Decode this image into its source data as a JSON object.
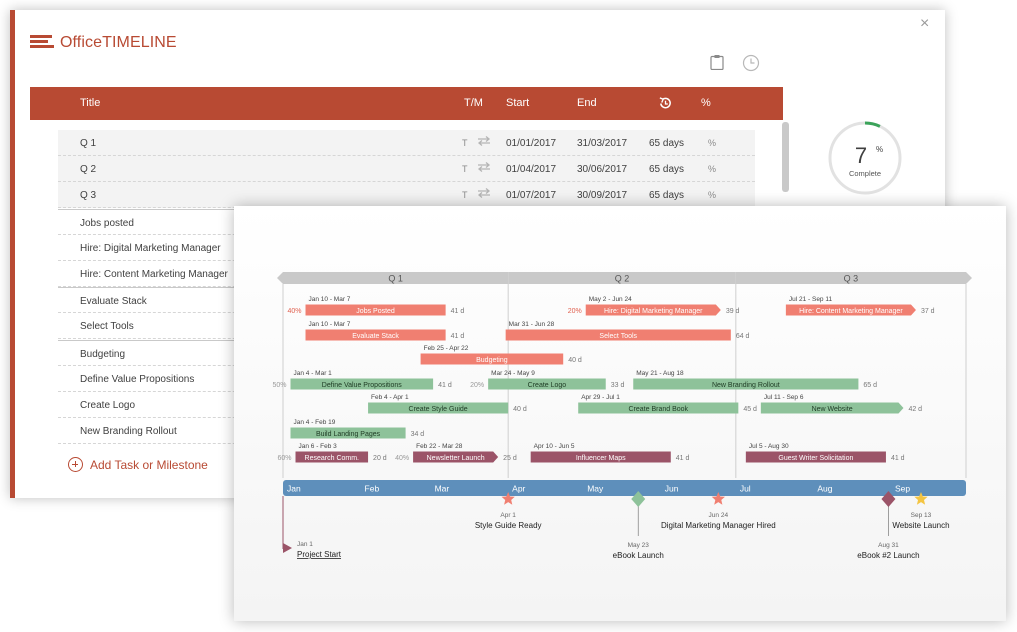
{
  "app": {
    "logo_office": "Office",
    "logo_timeline": "TIMELINE",
    "close": "×"
  },
  "editor": {
    "columns": {
      "title": "Title",
      "tm": "T/M",
      "start": "Start",
      "end": "End",
      "pct": "%"
    },
    "rows": [
      {
        "title": "Q 1",
        "tm": "T",
        "start": "01/01/2017",
        "end": "31/03/2017",
        "duration": "65 days",
        "pct": "%"
      },
      {
        "title": "Q 2",
        "tm": "T",
        "start": "01/04/2017",
        "end": "30/06/2017",
        "duration": "65 days",
        "pct": "%"
      },
      {
        "title": "Q 3",
        "tm": "T",
        "start": "01/07/2017",
        "end": "30/09/2017",
        "duration": "65 days",
        "pct": "%"
      },
      {
        "title": "Jobs posted"
      },
      {
        "title": "Hire: Digital Marketing Manager"
      },
      {
        "title": "Hire: Content Marketing Manager"
      },
      {
        "title": "Evaluate Stack"
      },
      {
        "title": "Select Tools"
      },
      {
        "title": "Budgeting"
      },
      {
        "title": "Define Value Propositions"
      },
      {
        "title": "Create Logo"
      },
      {
        "title": "New Branding Rollout"
      }
    ],
    "add_task_label": "Add Task or Milestone",
    "progress": {
      "value": "7",
      "unit": "%",
      "label": "Complete",
      "fraction": 0.07
    }
  },
  "timeline": {
    "colors": {
      "red": "#f07f71",
      "green": "#8ec29a",
      "purple": "#9b5468",
      "scale": "#5e8fbb",
      "quarter": "#c9c9c9"
    },
    "quarters": [
      {
        "label": "Q 1",
        "start_day": 0,
        "end_day": 90
      },
      {
        "label": "Q 2",
        "start_day": 90,
        "end_day": 181
      },
      {
        "label": "Q 3",
        "start_day": 181,
        "end_day": 273
      }
    ],
    "months": [
      {
        "label": "Jan",
        "day": 0
      },
      {
        "label": "Feb",
        "day": 31
      },
      {
        "label": "Mar",
        "day": 59
      },
      {
        "label": "Apr",
        "day": 90
      },
      {
        "label": "May",
        "day": 120
      },
      {
        "label": "Jun",
        "day": 151
      },
      {
        "label": "Jul",
        "day": 181
      },
      {
        "label": "Aug",
        "day": 212
      },
      {
        "label": "Sep",
        "day": 243
      }
    ],
    "tasks": [
      {
        "name": "Jobs Posted",
        "dates": "Jan 10 - Mar 7",
        "duration": "41 d",
        "pct": "40%",
        "color": "red",
        "lane": 0,
        "start": 9,
        "end": 65
      },
      {
        "name": "Hire: Digital Marketing Manager",
        "dates": "May 2 - Jun 24",
        "duration": "39 d",
        "pct": "20%",
        "color": "red",
        "lane": 0,
        "start": 121,
        "end": 175,
        "arrow": true
      },
      {
        "name": "Hire: Content Marketing Manager",
        "dates": "Jul 21 - Sep 11",
        "duration": "37 d",
        "color": "red",
        "lane": 0,
        "start": 201,
        "end": 253,
        "arrow": true
      },
      {
        "name": "Evaluate Stack",
        "dates": "Jan 10 - Mar 7",
        "duration": "41 d",
        "color": "red",
        "lane": 1,
        "start": 9,
        "end": 65
      },
      {
        "name": "Select Tools",
        "dates": "Mar 31 - Jun 28",
        "duration": "64 d",
        "color": "red",
        "lane": 1,
        "start": 89,
        "end": 179
      },
      {
        "name": "Budgeting",
        "dates": "Feb 25 - Apr 22",
        "duration": "40 d",
        "color": "red",
        "lane": 2,
        "start": 55,
        "end": 112
      },
      {
        "name": "Define Value Propositions",
        "dates": "Jan 4 - Mar 1",
        "duration": "41 d",
        "pct": "50%",
        "color": "green",
        "lane": 3,
        "start": 3,
        "end": 60
      },
      {
        "name": "Create Logo",
        "dates": "Mar 24 - May 9",
        "duration": "33 d",
        "pct": "20%",
        "color": "green",
        "lane": 3,
        "start": 82,
        "end": 129
      },
      {
        "name": "New Branding Rollout",
        "dates": "May 21 - Aug 18",
        "duration": "65 d",
        "color": "green",
        "lane": 3,
        "start": 140,
        "end": 230
      },
      {
        "name": "Create Style Guide",
        "dates": "Feb 4 - Apr 1",
        "duration": "40 d",
        "color": "green",
        "lane": 4,
        "start": 34,
        "end": 90
      },
      {
        "name": "Create Brand Book",
        "dates": "Apr 29 - Jul 1",
        "duration": "45 d",
        "color": "green",
        "lane": 4,
        "start": 118,
        "end": 182
      },
      {
        "name": "New Website",
        "dates": "Jul 11 - Sep 6",
        "duration": "42 d",
        "color": "green",
        "lane": 4,
        "start": 191,
        "end": 248,
        "arrow": true
      },
      {
        "name": "Build Landing Pages",
        "dates": "Jan 4 - Feb 19",
        "duration": "34 d",
        "color": "green",
        "lane": 5,
        "start": 3,
        "end": 49
      },
      {
        "name": "Research Comm.",
        "dates": "Jan 6 - Feb 3",
        "duration": "20 d",
        "pct": "60%",
        "color": "purple",
        "lane": 6,
        "start": 5,
        "end": 34
      },
      {
        "name": "Newsletter Launch",
        "dates": "Feb 22 - Mar 28",
        "duration": "25 d",
        "pct": "40%",
        "color": "purple",
        "lane": 6,
        "start": 52,
        "end": 86,
        "arrow": true
      },
      {
        "name": "Influencer Maps",
        "dates": "Apr 10 - Jun 5",
        "duration": "41 d",
        "color": "purple",
        "lane": 6,
        "start": 99,
        "end": 155
      },
      {
        "name": "Guest Writer Solicitation",
        "dates": "Jul 5 - Aug 30",
        "duration": "41 d",
        "color": "purple",
        "lane": 6,
        "start": 185,
        "end": 241
      }
    ],
    "milestones": [
      {
        "name": "Project Start",
        "date": "Jan 1",
        "day": 0,
        "shape": "flag",
        "color": "#9b5468",
        "below": "far"
      },
      {
        "name": "Style Guide Ready",
        "date": "Apr 1",
        "day": 90,
        "shape": "star",
        "color": "#f07f71",
        "below": "near"
      },
      {
        "name": "eBook Launch",
        "date": "May 23",
        "day": 142,
        "shape": "diamond",
        "color": "#8ec29a",
        "below": "far"
      },
      {
        "name": "Digital Marketing Manager Hired",
        "date": "Jun 24",
        "day": 174,
        "shape": "star",
        "color": "#f07f71",
        "below": "near"
      },
      {
        "name": "eBook #2 Launch",
        "date": "Aug 31",
        "day": 242,
        "shape": "diamond",
        "color": "#9b5468",
        "below": "far"
      },
      {
        "name": "Website Launch",
        "date": "Sep 13",
        "day": 255,
        "shape": "star",
        "color": "#f4c542",
        "below": "near"
      }
    ]
  }
}
